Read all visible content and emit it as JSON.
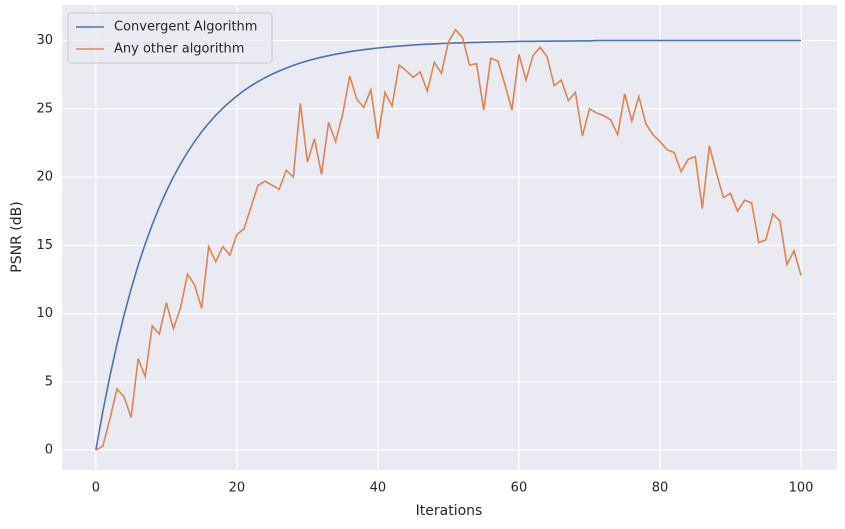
{
  "chart_data": {
    "type": "line",
    "xlabel": "Iterations",
    "ylabel": "PSNR (dB)",
    "x": [
      0,
      1,
      2,
      3,
      4,
      5,
      6,
      7,
      8,
      9,
      10,
      11,
      12,
      13,
      14,
      15,
      16,
      17,
      18,
      19,
      20,
      21,
      22,
      23,
      24,
      25,
      26,
      27,
      28,
      29,
      30,
      31,
      32,
      33,
      34,
      35,
      36,
      37,
      38,
      39,
      40,
      41,
      42,
      43,
      44,
      45,
      46,
      47,
      48,
      49,
      50,
      51,
      52,
      53,
      54,
      55,
      56,
      57,
      58,
      59,
      60,
      61,
      62,
      63,
      64,
      65,
      66,
      67,
      68,
      69,
      70,
      71,
      72,
      73,
      74,
      75,
      76,
      77,
      78,
      79,
      80,
      81,
      82,
      83,
      84,
      85,
      86,
      87,
      88,
      89,
      90,
      91,
      92,
      93,
      94,
      95,
      96,
      97,
      98,
      99,
      100
    ],
    "series": [
      {
        "name": "Convergent Algorithm",
        "color": "#4c72b0",
        "values": [
          0,
          2.86,
          5.44,
          7.78,
          9.89,
          11.8,
          13.54,
          15.1,
          16.52,
          17.8,
          18.96,
          20.01,
          20.96,
          21.82,
          22.6,
          23.31,
          23.94,
          24.52,
          25.04,
          25.51,
          25.94,
          26.33,
          26.68,
          26.99,
          27.28,
          27.54,
          27.77,
          27.98,
          28.18,
          28.35,
          28.51,
          28.65,
          28.78,
          28.89,
          29.0,
          29.09,
          29.18,
          29.26,
          29.33,
          29.39,
          29.45,
          29.5,
          29.55,
          29.59,
          29.63,
          29.67,
          29.7,
          29.73,
          29.75,
          29.78,
          29.8,
          29.82,
          29.83,
          29.85,
          29.86,
          29.88,
          29.89,
          29.9,
          29.91,
          29.92,
          29.93,
          29.94,
          29.94,
          29.95,
          29.95,
          29.96,
          29.96,
          29.96,
          29.97,
          29.97,
          29.97,
          30,
          30,
          30,
          30,
          30,
          30,
          30,
          30,
          30,
          30,
          30,
          30,
          30,
          30,
          30,
          30,
          30,
          30,
          30,
          30,
          30,
          30,
          30,
          30,
          30,
          30,
          30,
          30,
          30,
          30
        ]
      },
      {
        "name": "Any other algorithm",
        "color": "#dd8452",
        "values": [
          0,
          0.3,
          2.3,
          4.5,
          3.9,
          2.4,
          6.7,
          5.4,
          9.1,
          8.5,
          10.8,
          8.9,
          10.4,
          12.9,
          12.1,
          10.4,
          14.9,
          13.8,
          14.9,
          14.3,
          15.8,
          16.2,
          17.8,
          19.4,
          19.7,
          19.4,
          19.1,
          20.5,
          20.0,
          25.4,
          21.1,
          22.8,
          20.2,
          24.0,
          22.6,
          24.6,
          27.4,
          25.7,
          25.1,
          26.4,
          22.8,
          26.2,
          25.2,
          28.2,
          27.8,
          27.3,
          27.7,
          26.3,
          28.4,
          27.6,
          29.9,
          30.8,
          30.2,
          28.2,
          28.3,
          24.9,
          28.7,
          28.5,
          26.8,
          24.9,
          29.0,
          27.1,
          28.9,
          29.5,
          28.8,
          26.7,
          27.1,
          25.6,
          26.2,
          23.0,
          25.0,
          24.7,
          24.5,
          24.2,
          23.1,
          26.1,
          24.1,
          25.9,
          23.9,
          23.1,
          22.6,
          22.0,
          21.8,
          20.4,
          21.3,
          21.5,
          17.7,
          22.3,
          20.3,
          18.5,
          18.8,
          17.5,
          18.3,
          18.1,
          15.2,
          15.4,
          17.3,
          16.8,
          13.6,
          14.6,
          12.8
        ]
      }
    ],
    "xlim": [
      -4.8,
      105.1
    ],
    "ylim": [
      -1.45,
      32.6
    ],
    "xticks": [
      0,
      20,
      40,
      60,
      80,
      100
    ],
    "yticks": [
      0,
      5,
      10,
      15,
      20,
      25,
      30
    ],
    "grid": true,
    "legend": "upper left"
  }
}
